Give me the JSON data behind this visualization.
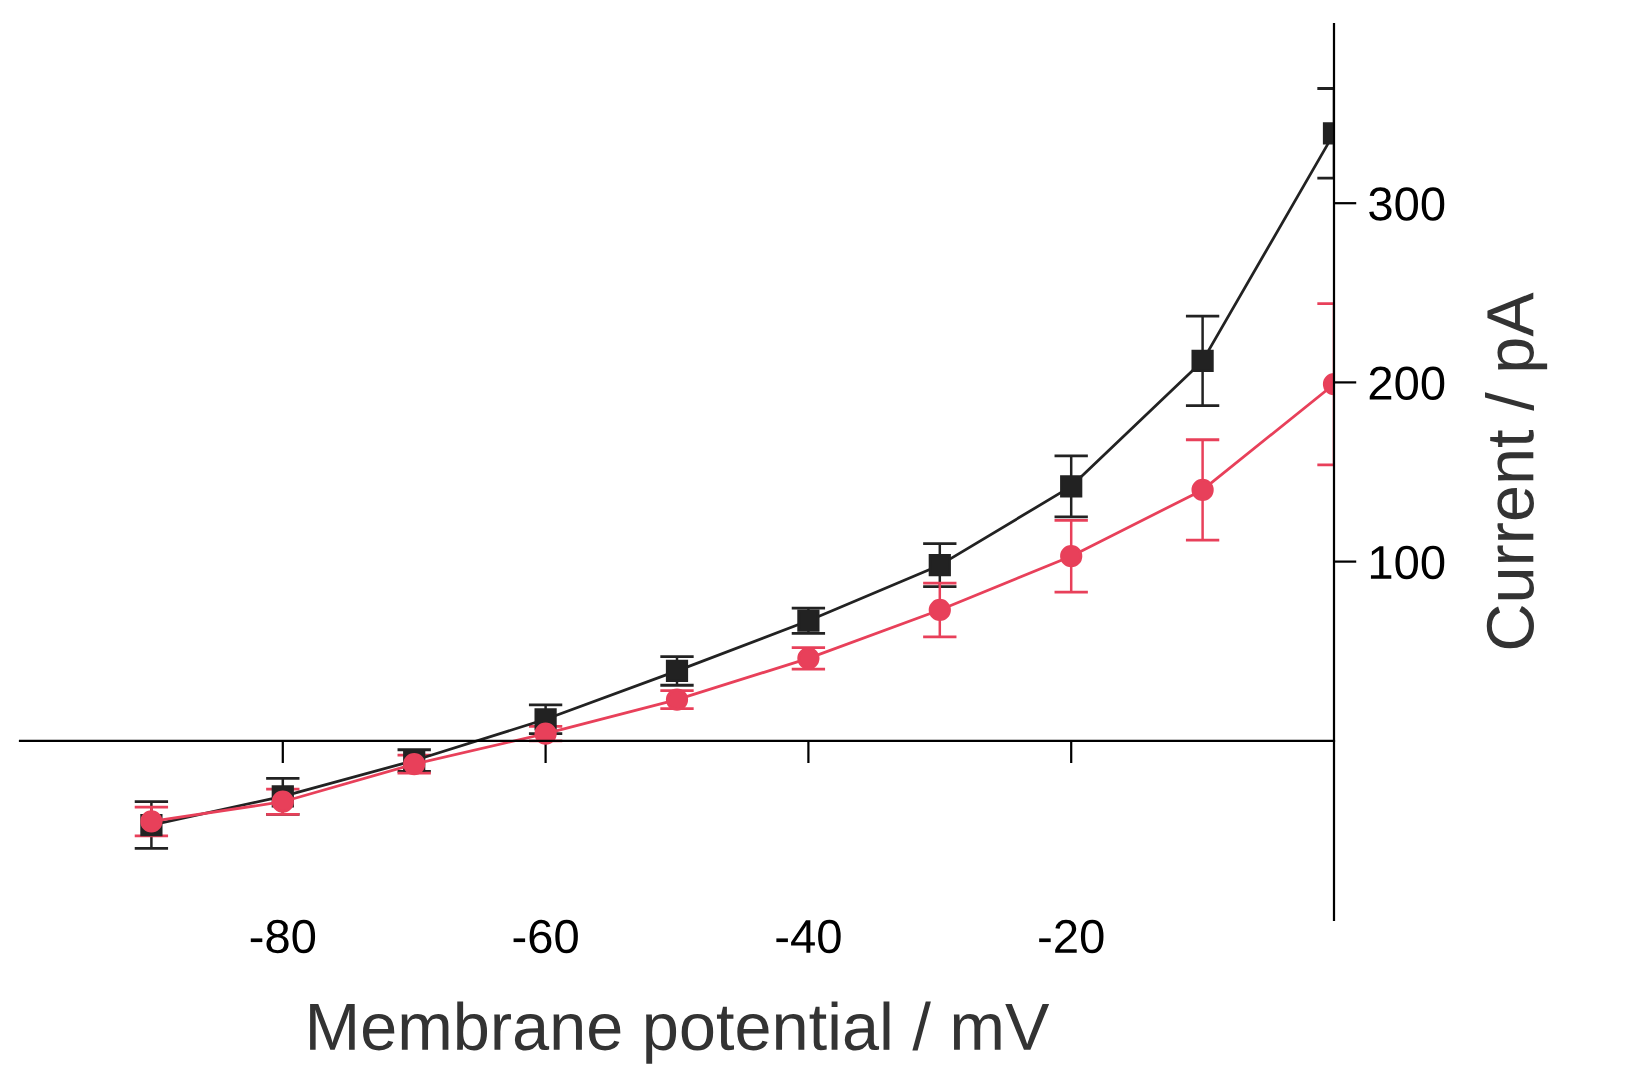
{
  "chart_data": {
    "type": "line",
    "xlabel": "Membrane potential / mV",
    "ylabel": "Current / pA",
    "x": [
      -90,
      -80,
      -70,
      -60,
      -50,
      -40,
      -30,
      -20,
      -10,
      0
    ],
    "xlim": [
      -100,
      0
    ],
    "xticks": [
      -80,
      -60,
      -40,
      -20
    ],
    "ylim": [
      -100,
      400
    ],
    "yticks": [
      100,
      200,
      300
    ],
    "grid": false,
    "legend": false,
    "series": [
      {
        "color": "#222222",
        "marker": "square",
        "values": [
          -47,
          -31,
          -11,
          12,
          39,
          67,
          98,
          142,
          212,
          339
        ],
        "errors": [
          13,
          10,
          6,
          8,
          8,
          7,
          12,
          17,
          25,
          25
        ]
      },
      {
        "color": "#e8405a",
        "marker": "circle",
        "values": [
          -45,
          -34,
          -13,
          4,
          23,
          46,
          73,
          103,
          140,
          199
        ],
        "errors": [
          8,
          7,
          5,
          4,
          5,
          6,
          15,
          20,
          28,
          45
        ]
      }
    ]
  }
}
